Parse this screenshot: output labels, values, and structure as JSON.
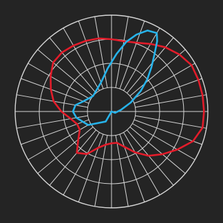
{
  "chart_data": {
    "type": "polar-line",
    "title": "",
    "angular_divisions": 36,
    "radial_rings": 4,
    "grid": true,
    "background": "#242424",
    "grid_color": "#d6d6d6",
    "series": [
      {
        "color": "#e31c2a",
        "points": [
          [
            0,
            0.33
          ],
          [
            10,
            0.33
          ],
          [
            20,
            0.39
          ],
          [
            30,
            0.49
          ],
          [
            40,
            0.6
          ],
          [
            50,
            0.69
          ],
          [
            60,
            0.79
          ],
          [
            70,
            0.9
          ],
          [
            80,
            0.96
          ],
          [
            90,
            0.96
          ],
          [
            100,
            0.96
          ],
          [
            110,
            0.96
          ],
          [
            120,
            0.96
          ],
          [
            130,
            0.92
          ],
          [
            140,
            0.87
          ],
          [
            150,
            0.81
          ],
          [
            160,
            0.76
          ],
          [
            170,
            0.74
          ],
          [
            180,
            0.75
          ],
          [
            190,
            0.77
          ],
          [
            200,
            0.78
          ],
          [
            210,
            0.79
          ],
          [
            220,
            0.8
          ],
          [
            230,
            0.79
          ],
          [
            240,
            0.73
          ],
          [
            250,
            0.67
          ],
          [
            260,
            0.61
          ],
          [
            270,
            0.52
          ],
          [
            280,
            0.43
          ],
          [
            290,
            0.38
          ],
          [
            300,
            0.38
          ],
          [
            310,
            0.45
          ],
          [
            320,
            0.56
          ],
          [
            330,
            0.51
          ],
          [
            340,
            0.4
          ],
          [
            350,
            0.35
          ]
        ]
      },
      {
        "color": "#27b3ea",
        "points": [
          [
            0,
            0.0
          ],
          [
            40,
            0.0
          ],
          [
            70,
            0.04
          ],
          [
            100,
            0.1
          ],
          [
            115,
            0.22
          ],
          [
            125,
            0.37
          ],
          [
            132,
            0.5
          ],
          [
            138,
            0.62
          ],
          [
            143,
            0.74
          ],
          [
            147,
            0.87
          ],
          [
            150,
            0.94
          ],
          [
            156,
            0.92
          ],
          [
            162,
            0.84
          ],
          [
            168,
            0.74
          ],
          [
            175,
            0.6
          ],
          [
            185,
            0.45
          ],
          [
            200,
            0.32
          ],
          [
            230,
            0.25
          ],
          [
            250,
            0.31
          ],
          [
            260,
            0.38
          ],
          [
            270,
            0.4
          ],
          [
            280,
            0.37
          ],
          [
            300,
            0.28
          ],
          [
            330,
            0.12
          ],
          [
            360,
            0.0
          ]
        ]
      }
    ]
  }
}
